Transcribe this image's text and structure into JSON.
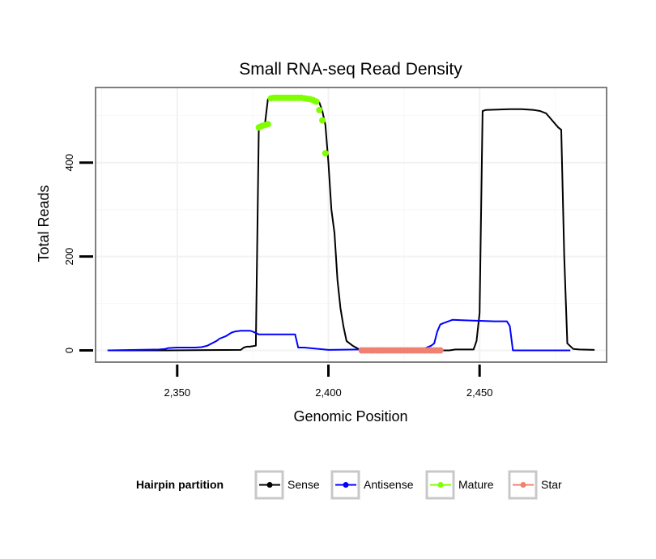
{
  "chart_data": {
    "type": "line",
    "title": "Small RNA-seq Read Density",
    "xlabel": "Genomic Position",
    "ylabel": "Total Reads",
    "xlim": [
      2323,
      2492
    ],
    "ylim": [
      -25,
      560
    ],
    "x_ticks": [
      2350,
      2400,
      2450
    ],
    "x_tick_labels": [
      "2,350",
      "2,400",
      "2,450"
    ],
    "y_ticks": [
      0,
      200,
      400
    ],
    "y_tick_labels": [
      "0",
      "200",
      "400"
    ],
    "grid": true,
    "legend": {
      "title": "Hairpin partition",
      "position": "bottom",
      "entries": [
        "Sense",
        "Antisense",
        "Mature",
        "Star"
      ]
    },
    "series": [
      {
        "name": "Sense",
        "color": "#000000",
        "mode": "line",
        "x": [
          2327,
          2346,
          2371,
          2372,
          2373,
          2374,
          2376,
          2377,
          2378,
          2379,
          2380,
          2381,
          2382,
          2384,
          2388,
          2392,
          2395,
          2396,
          2397,
          2398,
          2399,
          2400,
          2401,
          2402,
          2403,
          2404,
          2405,
          2406,
          2408,
          2410,
          2411,
          2425,
          2440,
          2442,
          2444,
          2448,
          2449,
          2450,
          2451,
          2452,
          2456,
          2460,
          2464,
          2468,
          2470,
          2472,
          2474,
          2476,
          2477,
          2478,
          2479,
          2481,
          2483,
          2488
        ],
        "y": [
          0,
          0,
          1,
          6,
          8,
          8,
          10,
          480,
          480,
          482,
          535,
          537,
          538,
          538,
          538,
          538,
          537,
          534,
          528,
          510,
          480,
          400,
          300,
          250,
          150,
          90,
          50,
          20,
          10,
          3,
          0,
          0,
          0,
          2,
          2,
          2,
          20,
          80,
          510,
          512,
          513,
          514,
          514,
          512,
          510,
          505,
          490,
          475,
          470,
          200,
          15,
          3,
          2,
          1
        ]
      },
      {
        "name": "Antisense",
        "color": "#0000ff",
        "mode": "line",
        "x": [
          2327,
          2344,
          2346,
          2347,
          2350,
          2356,
          2358,
          2360,
          2363,
          2364,
          2366,
          2368,
          2369,
          2371,
          2373,
          2374,
          2375,
          2377,
          2380,
          2383,
          2384,
          2385,
          2386,
          2388,
          2389,
          2390,
          2392,
          2400,
          2410,
          2425,
          2431,
          2434,
          2435,
          2436,
          2437,
          2438,
          2441,
          2445,
          2450,
          2455,
          2458,
          2459,
          2460,
          2461,
          2470,
          2480
        ],
        "y": [
          0,
          2,
          3,
          5,
          6,
          6,
          7,
          10,
          20,
          25,
          30,
          38,
          40,
          42,
          42,
          42,
          40,
          34,
          34,
          34,
          34,
          34,
          34,
          34,
          34,
          6,
          6,
          1,
          2,
          2,
          2,
          10,
          15,
          40,
          55,
          58,
          65,
          64,
          63,
          62,
          62,
          62,
          52,
          0,
          0,
          0
        ]
      },
      {
        "name": "Mature",
        "color": "#7fff00",
        "mode": "points",
        "x": [
          2377,
          2378,
          2379,
          2380,
          2381,
          2382,
          2383,
          2384,
          2385,
          2386,
          2387,
          2388,
          2389,
          2390,
          2391,
          2392,
          2393,
          2394,
          2395,
          2396,
          2397,
          2398,
          2399
        ],
        "y": [
          475,
          478,
          480,
          482,
          537,
          538,
          538,
          538,
          538,
          538,
          538,
          538,
          538,
          538,
          538,
          537,
          536,
          535,
          533,
          530,
          512,
          490,
          420
        ]
      },
      {
        "name": "Star",
        "color": "#f08070",
        "mode": "points",
        "x": [
          2411,
          2412,
          2413,
          2414,
          2415,
          2416,
          2417,
          2418,
          2419,
          2420,
          2421,
          2422,
          2423,
          2424,
          2425,
          2426,
          2427,
          2428,
          2429,
          2430,
          2431,
          2432,
          2433,
          2434,
          2435,
          2436,
          2437
        ],
        "y": [
          0,
          0,
          0,
          0,
          0,
          0,
          0,
          0,
          0,
          0,
          0,
          0,
          0,
          0,
          0,
          0,
          0,
          0,
          0,
          0,
          0,
          0,
          0,
          0,
          0,
          0,
          0
        ]
      }
    ]
  }
}
